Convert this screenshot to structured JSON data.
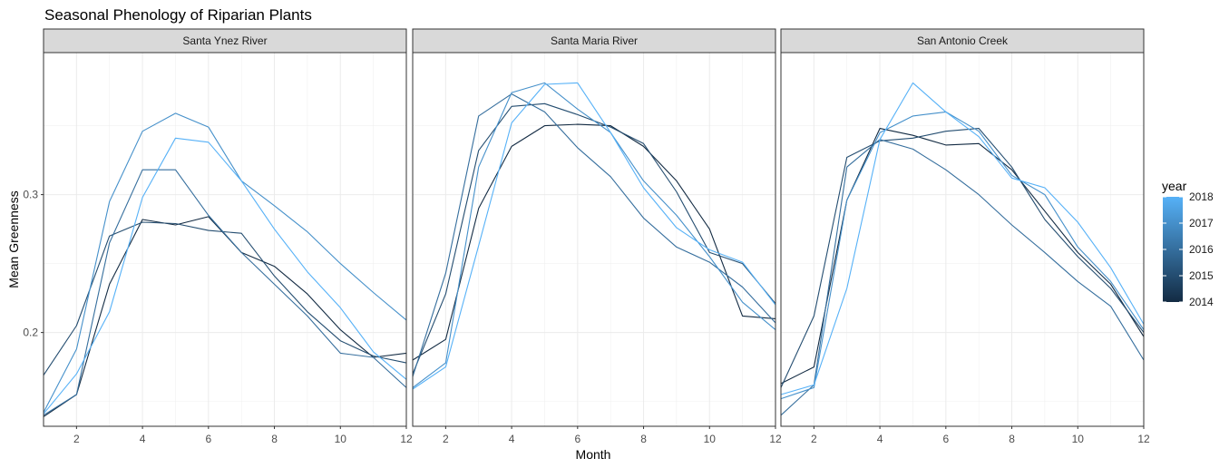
{
  "chart_data": {
    "type": "line",
    "title": "Seasonal Phenology of Riparian Plants",
    "xlabel": "Month",
    "ylabel": "Mean Greenness",
    "xlim": [
      1,
      12
    ],
    "ylim": [
      0.132,
      0.403
    ],
    "x_ticks": [
      2,
      4,
      6,
      8,
      10,
      12
    ],
    "y_ticks": [
      0.2,
      0.3
    ],
    "y_tick_labels": [
      "0.2",
      "0.3"
    ],
    "grid": true,
    "legend": {
      "title": "year",
      "placement": "right",
      "ticks": [
        2018,
        2017,
        2016,
        2015,
        2014
      ],
      "low_color": "#132B43",
      "high_color": "#56B1F7"
    },
    "x": [
      1,
      2,
      3,
      4,
      5,
      6,
      7,
      8,
      9,
      10,
      11,
      12
    ],
    "panels": [
      {
        "name": "Santa Ynez River",
        "series": [
          {
            "year": 2014,
            "values": [
              0.139,
              0.155,
              0.235,
              0.282,
              0.278,
              0.284,
              0.258,
              0.248,
              0.228,
              0.202,
              0.182,
              0.185
            ]
          },
          {
            "year": 2015,
            "values": [
              0.169,
              0.205,
              0.27,
              0.28,
              0.279,
              0.274,
              0.272,
              0.241,
              0.215,
              0.194,
              0.183,
              0.178
            ]
          },
          {
            "year": 2016,
            "values": [
              0.14,
              0.155,
              0.265,
              0.318,
              0.318,
              0.285,
              0.258,
              0.235,
              0.212,
              0.185,
              0.182,
              0.16
            ]
          },
          {
            "year": 2017,
            "values": [
              0.142,
              0.188,
              0.295,
              0.346,
              0.359,
              0.349,
              0.31,
              0.292,
              0.273,
              0.25,
              0.229,
              0.209
            ]
          },
          {
            "year": 2018,
            "values": [
              0.141,
              0.17,
              0.215,
              0.298,
              0.341,
              0.338,
              0.31,
              0.275,
              0.244,
              0.218,
              0.186,
              0.166
            ]
          }
        ]
      },
      {
        "name": "Santa Maria River",
        "series": [
          {
            "year": 2014,
            "values": [
              0.18,
              0.195,
              0.29,
              0.335,
              0.35,
              0.351,
              0.35,
              0.335,
              0.31,
              0.275,
              0.212,
              0.21
            ]
          },
          {
            "year": 2015,
            "values": [
              0.17,
              0.228,
              0.332,
              0.364,
              0.366,
              0.358,
              0.349,
              0.337,
              0.302,
              0.258,
              0.25,
              0.221
            ]
          },
          {
            "year": 2016,
            "values": [
              0.168,
              0.243,
              0.357,
              0.373,
              0.36,
              0.334,
              0.313,
              0.283,
              0.262,
              0.251,
              0.233,
              0.207
            ]
          },
          {
            "year": 2017,
            "values": [
              0.16,
              0.178,
              0.32,
              0.374,
              0.381,
              0.362,
              0.345,
              0.31,
              0.285,
              0.255,
              0.222,
              0.202
            ]
          },
          {
            "year": 2018,
            "values": [
              0.159,
              0.175,
              0.263,
              0.352,
              0.38,
              0.381,
              0.345,
              0.305,
              0.276,
              0.26,
              0.251,
              0.22
            ]
          }
        ]
      },
      {
        "name": "San Antonio Creek",
        "series": [
          {
            "year": 2014,
            "values": [
              0.163,
              0.175,
              0.296,
              0.348,
              0.343,
              0.336,
              0.337,
              0.318,
              0.288,
              0.258,
              0.235,
              0.197
            ]
          },
          {
            "year": 2015,
            "values": [
              0.16,
              0.212,
              0.327,
              0.339,
              0.341,
              0.346,
              0.348,
              0.32,
              0.282,
              0.255,
              0.232,
              0.2
            ]
          },
          {
            "year": 2016,
            "values": [
              0.14,
              0.162,
              0.32,
              0.34,
              0.333,
              0.318,
              0.3,
              0.278,
              0.258,
              0.237,
              0.219,
              0.18
            ]
          },
          {
            "year": 2017,
            "values": [
              0.152,
              0.16,
              0.296,
              0.345,
              0.357,
              0.36,
              0.346,
              0.314,
              0.3,
              0.262,
              0.237,
              0.202
            ]
          },
          {
            "year": 2018,
            "values": [
              0.155,
              0.162,
              0.232,
              0.34,
              0.381,
              0.36,
              0.342,
              0.312,
              0.305,
              0.28,
              0.247,
              0.206
            ]
          }
        ]
      }
    ]
  }
}
